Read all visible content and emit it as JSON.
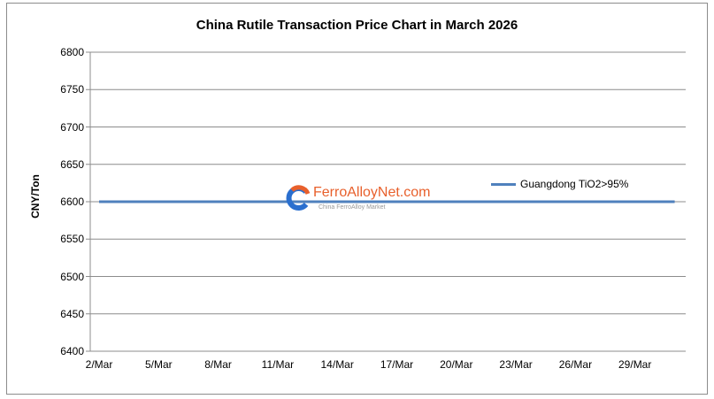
{
  "chart_data": {
    "type": "line",
    "title": "China Rutile Transaction Price Chart in March 2026",
    "xlabel": "",
    "ylabel": "CNY/Ton",
    "ylim": [
      6400,
      6800
    ],
    "y_ticks": [
      6400,
      6450,
      6500,
      6550,
      6600,
      6650,
      6700,
      6750,
      6800
    ],
    "x_tick_labels": [
      "2/Mar",
      "5/Mar",
      "8/Mar",
      "11/Mar",
      "14/Mar",
      "17/Mar",
      "20/Mar",
      "23/Mar",
      "26/Mar",
      "29/Mar"
    ],
    "grid": {
      "horizontal": true,
      "vertical": false
    },
    "legend_position": "right-inside",
    "series": [
      {
        "name": "Guangdong TiO2>95%",
        "color": "#4f81bd",
        "x": [
          "2/Mar",
          "31/Mar"
        ],
        "values": [
          6600,
          6600
        ]
      }
    ]
  },
  "watermark": {
    "brand": "FerroAlloyNet.com",
    "subtitle": "China FerroAlloy Market"
  }
}
